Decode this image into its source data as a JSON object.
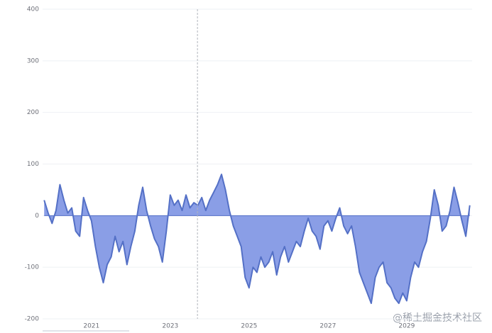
{
  "chart_data": {
    "type": "area",
    "x": [
      2019.8,
      2019.9,
      2020.0,
      2020.1,
      2020.2,
      2020.3,
      2020.4,
      2020.5,
      2020.6,
      2020.7,
      2020.8,
      2020.9,
      2021.0,
      2021.1,
      2021.2,
      2021.3,
      2021.4,
      2021.5,
      2021.6,
      2021.7,
      2021.8,
      2021.9,
      2022.0,
      2022.1,
      2022.2,
      2022.3,
      2022.4,
      2022.5,
      2022.6,
      2022.7,
      2022.8,
      2022.9,
      2023.0,
      2023.1,
      2023.2,
      2023.3,
      2023.4,
      2023.5,
      2023.6,
      2023.7,
      2023.8,
      2023.9,
      2024.0,
      2024.1,
      2024.2,
      2024.3,
      2024.4,
      2024.5,
      2024.6,
      2024.7,
      2024.8,
      2024.9,
      2025.0,
      2025.1,
      2025.2,
      2025.3,
      2025.4,
      2025.5,
      2025.6,
      2025.7,
      2025.8,
      2025.9,
      2026.0,
      2026.1,
      2026.2,
      2026.3,
      2026.4,
      2026.5,
      2026.6,
      2026.7,
      2026.8,
      2026.9,
      2027.0,
      2027.1,
      2027.2,
      2027.3,
      2027.4,
      2027.5,
      2027.6,
      2027.7,
      2027.8,
      2027.9,
      2028.0,
      2028.1,
      2028.2,
      2028.3,
      2028.4,
      2028.5,
      2028.6,
      2028.7,
      2028.8,
      2028.9,
      2029.0,
      2029.1,
      2029.2,
      2029.3,
      2029.4,
      2029.5,
      2029.6,
      2029.7,
      2029.8,
      2029.9,
      2030.0,
      2030.1,
      2030.2,
      2030.3,
      2030.4,
      2030.5,
      2030.6
    ],
    "values": [
      30,
      5,
      -15,
      10,
      60,
      30,
      5,
      15,
      -30,
      -40,
      35,
      10,
      -10,
      -60,
      -100,
      -130,
      -95,
      -80,
      -40,
      -70,
      -50,
      -95,
      -60,
      -30,
      20,
      55,
      10,
      -20,
      -45,
      -60,
      -90,
      -30,
      40,
      20,
      30,
      10,
      40,
      15,
      25,
      20,
      35,
      10,
      30,
      45,
      60,
      80,
      50,
      10,
      -20,
      -40,
      -60,
      -120,
      -140,
      -100,
      -110,
      -80,
      -100,
      -90,
      -70,
      -115,
      -80,
      -60,
      -90,
      -70,
      -50,
      -60,
      -30,
      -5,
      -30,
      -40,
      -65,
      -20,
      -10,
      -30,
      -5,
      15,
      -20,
      -35,
      -20,
      -60,
      -110,
      -130,
      -150,
      -170,
      -120,
      -100,
      -90,
      -130,
      -140,
      -160,
      -170,
      -150,
      -165,
      -120,
      -90,
      -100,
      -70,
      -50,
      -5,
      50,
      20,
      -30,
      -20,
      10,
      55,
      25,
      -10,
      -40,
      20
    ],
    "color": "#5470c6",
    "fill": "#8a9ee6",
    "xlim": [
      2019.76,
      2030.66
    ],
    "xticks": [
      2021,
      2023,
      2025,
      2027,
      2029
    ],
    "ylim": [
      -200,
      400
    ],
    "yticks": [
      -200,
      -100,
      0,
      100,
      200,
      300,
      400
    ],
    "grid": true,
    "marker_x": 2023.69
  },
  "watermark": "@稀土掘金技术社区"
}
